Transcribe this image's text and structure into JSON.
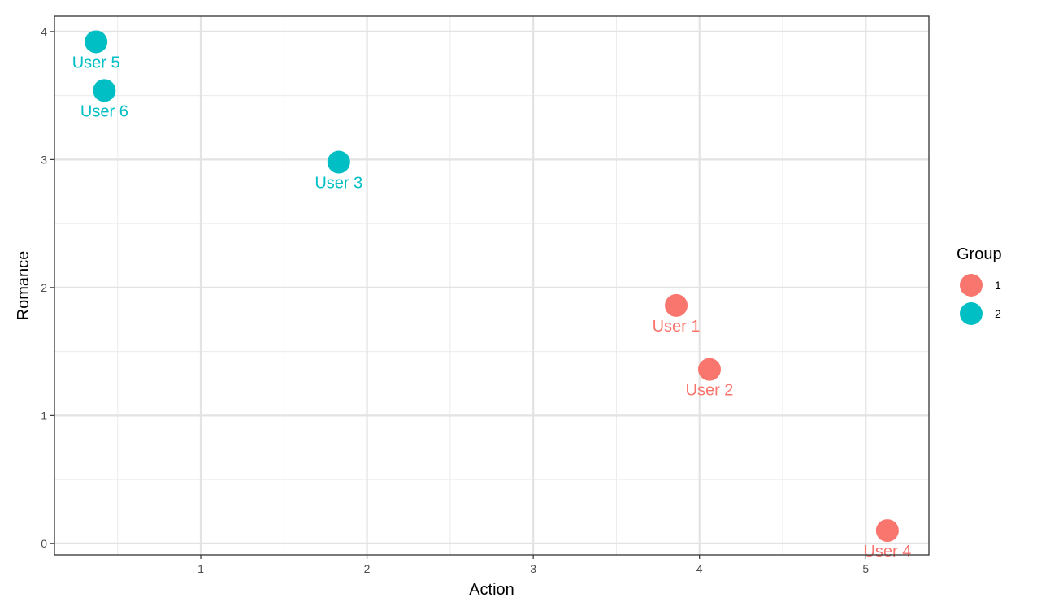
{
  "chart_data": {
    "type": "scatter",
    "xlabel": "Action",
    "ylabel": "Romance",
    "xlim": [
      0.12,
      5.38
    ],
    "ylim": [
      -0.09,
      4.12
    ],
    "x_ticks": [
      1,
      2,
      3,
      4,
      5
    ],
    "y_ticks": [
      0,
      1,
      2,
      3,
      4
    ],
    "grid": true,
    "legend": {
      "title": "Group",
      "position": "right",
      "entries": [
        {
          "label": "1",
          "color": "#F8766D"
        },
        {
          "label": "2",
          "color": "#00BFC4"
        }
      ]
    },
    "points": [
      {
        "label": "User 1",
        "x": 3.86,
        "y": 1.86,
        "group": "1"
      },
      {
        "label": "User 2",
        "x": 4.06,
        "y": 1.36,
        "group": "1"
      },
      {
        "label": "User 3",
        "x": 1.83,
        "y": 2.98,
        "group": "2"
      },
      {
        "label": "User 4",
        "x": 5.13,
        "y": 0.1,
        "group": "1"
      },
      {
        "label": "User 5",
        "x": 0.37,
        "y": 3.92,
        "group": "2"
      },
      {
        "label": "User 6",
        "x": 0.42,
        "y": 3.54,
        "group": "2"
      }
    ],
    "colors": {
      "1": "#F8766D",
      "2": "#00BFC4"
    }
  }
}
